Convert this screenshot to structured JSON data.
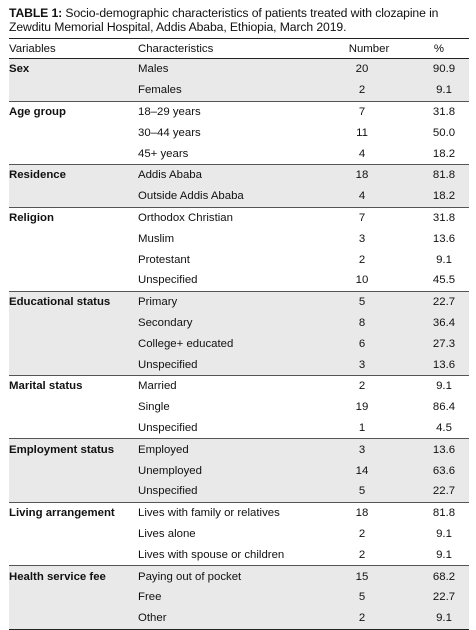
{
  "caption": {
    "label": "TABLE 1:",
    "text": " Socio-demographic characteristics of patients treated with clozapine in Zewditu Memorial Hospital, Addis Ababa, Ethiopia, March 2019."
  },
  "headers": [
    "Variables",
    "Characteristics",
    "Number",
    "%"
  ],
  "groups": [
    {
      "variable": "Sex",
      "rows": [
        {
          "characteristic": "Males",
          "number": "20",
          "percent": "90.9"
        },
        {
          "characteristic": "Females",
          "number": "2",
          "percent": "9.1"
        }
      ]
    },
    {
      "variable": "Age group",
      "rows": [
        {
          "characteristic": "18–29 years",
          "number": "7",
          "percent": "31.8"
        },
        {
          "characteristic": "30–44 years",
          "number": "11",
          "percent": "50.0"
        },
        {
          "characteristic": "45+ years",
          "number": "4",
          "percent": "18.2"
        }
      ]
    },
    {
      "variable": "Residence",
      "rows": [
        {
          "characteristic": "Addis Ababa",
          "number": "18",
          "percent": "81.8"
        },
        {
          "characteristic": "Outside Addis Ababa",
          "number": "4",
          "percent": "18.2"
        }
      ]
    },
    {
      "variable": "Religion",
      "rows": [
        {
          "characteristic": "Orthodox Christian",
          "number": "7",
          "percent": "31.8"
        },
        {
          "characteristic": "Muslim",
          "number": "3",
          "percent": "13.6"
        },
        {
          "characteristic": "Protestant",
          "number": "2",
          "percent": "9.1"
        },
        {
          "characteristic": "Unspecified",
          "number": "10",
          "percent": "45.5"
        }
      ]
    },
    {
      "variable": "Educational status",
      "rows": [
        {
          "characteristic": "Primary",
          "number": "5",
          "percent": "22.7"
        },
        {
          "characteristic": "Secondary",
          "number": "8",
          "percent": "36.4"
        },
        {
          "characteristic": "College+ educated",
          "number": "6",
          "percent": "27.3"
        },
        {
          "characteristic": "Unspecified",
          "number": "3",
          "percent": "13.6"
        }
      ]
    },
    {
      "variable": "Marital status",
      "rows": [
        {
          "characteristic": "Married",
          "number": "2",
          "percent": "9.1"
        },
        {
          "characteristic": "Single",
          "number": "19",
          "percent": "86.4"
        },
        {
          "characteristic": "Unspecified",
          "number": "1",
          "percent": "4.5"
        }
      ]
    },
    {
      "variable": "Employment status",
      "rows": [
        {
          "characteristic": "Employed",
          "number": "3",
          "percent": "13.6"
        },
        {
          "characteristic": "Unemployed",
          "number": "14",
          "percent": "63.6"
        },
        {
          "characteristic": "Unspecified",
          "number": "5",
          "percent": "22.7"
        }
      ]
    },
    {
      "variable": "Living arrangement",
      "rows": [
        {
          "characteristic": "Lives with family or relatives",
          "number": "18",
          "percent": "81.8"
        },
        {
          "characteristic": "Lives alone",
          "number": "2",
          "percent": "9.1"
        },
        {
          "characteristic": "Lives with spouse or children",
          "number": "2",
          "percent": "9.1"
        }
      ]
    },
    {
      "variable": "Health service fee",
      "rows": [
        {
          "characteristic": "Paying out of pocket",
          "number": "15",
          "percent": "68.2"
        },
        {
          "characteristic": "Free",
          "number": "5",
          "percent": "22.7"
        },
        {
          "characteristic": "Other",
          "number": "2",
          "percent": "9.1"
        }
      ]
    }
  ]
}
